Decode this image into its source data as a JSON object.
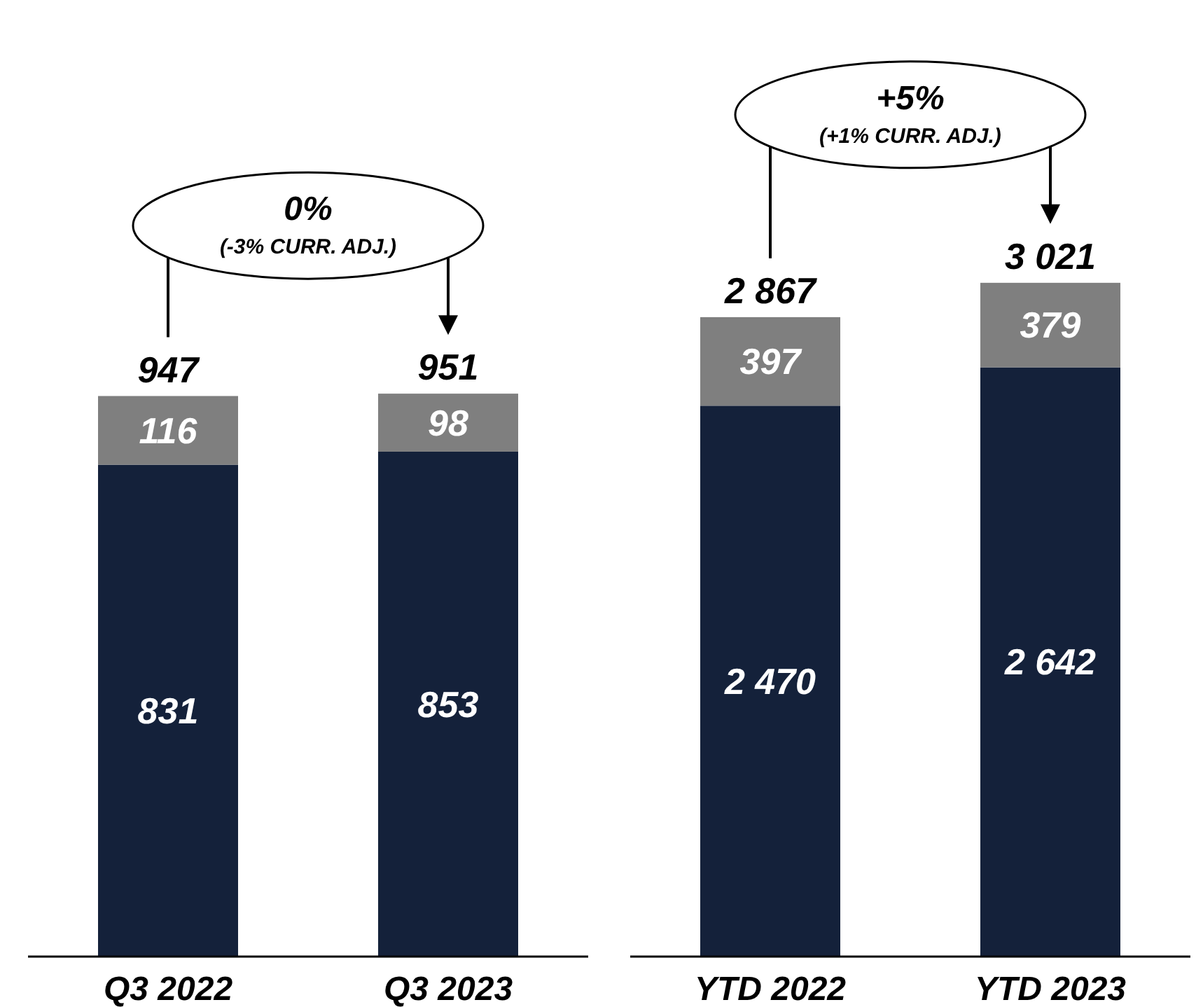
{
  "chart_data": [
    {
      "type": "bar",
      "stacked": true,
      "categories": [
        "Q3 2022",
        "Q3 2023"
      ],
      "series": [
        {
          "color": "#14213a",
          "values": [
            831,
            853
          ],
          "value_labels": [
            "831",
            "853"
          ]
        },
        {
          "color": "#7f7f7f",
          "values": [
            116,
            98
          ],
          "value_labels": [
            "116",
            "98"
          ]
        }
      ],
      "totals": [
        "947",
        "951"
      ],
      "annotations": [
        "0%",
        "(-3% CURR. ADJ.)"
      ]
    },
    {
      "type": "bar",
      "stacked": true,
      "categories": [
        "YTD 2022",
        "YTD 2023"
      ],
      "series": [
        {
          "color": "#14213a",
          "values": [
            2470,
            2642
          ],
          "value_labels": [
            "2 470",
            "2 642"
          ]
        },
        {
          "color": "#7f7f7f",
          "values": [
            397,
            379
          ],
          "value_labels": [
            "397",
            "379"
          ]
        }
      ],
      "totals": [
        "2 867",
        "3 021"
      ],
      "annotations": [
        "+5%",
        "(+1% CURR. ADJ.)"
      ]
    }
  ]
}
